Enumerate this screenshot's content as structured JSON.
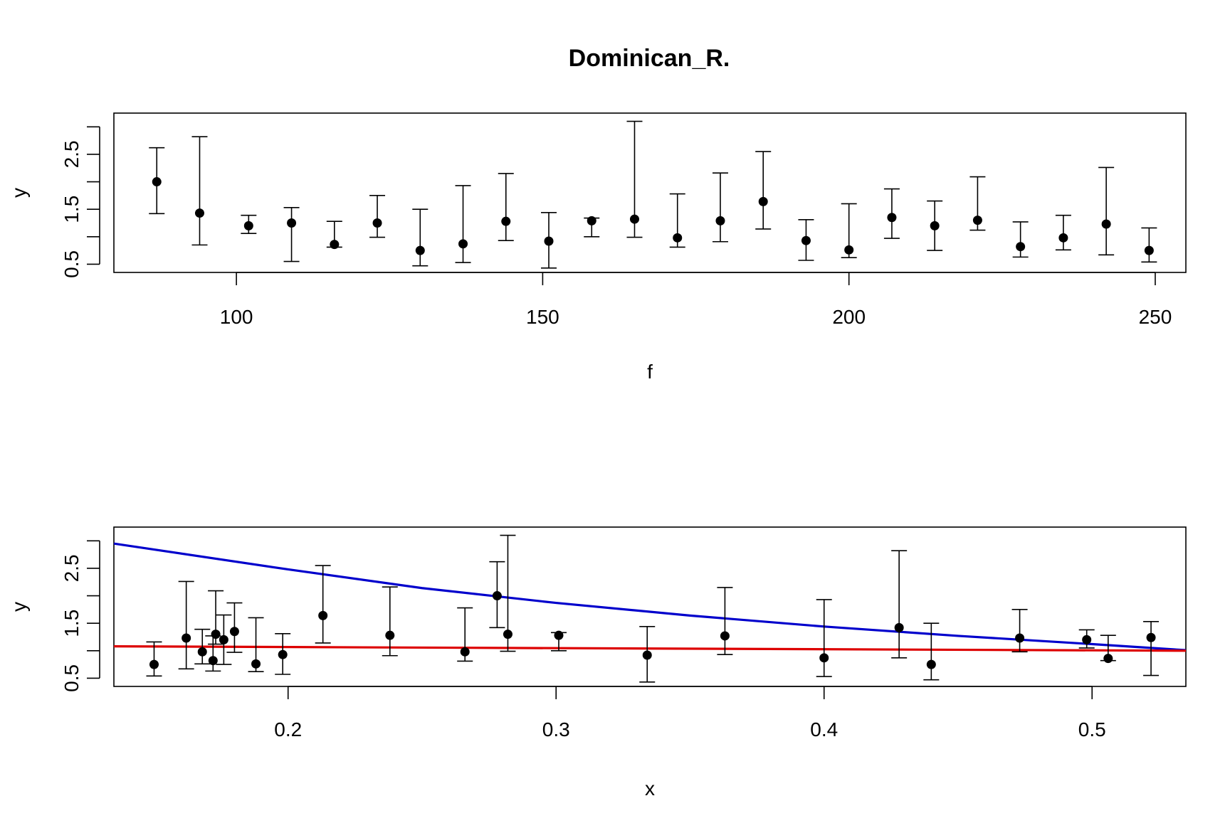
{
  "title": "Dominican_R.",
  "chart_data": [
    {
      "type": "scatter",
      "xlabel": "f",
      "ylabel": "y",
      "xlim": [
        80,
        255
      ],
      "ylim": [
        0.35,
        3.25
      ],
      "x_ticks": [
        100,
        150,
        200,
        250
      ],
      "y_ticks": [
        0.5,
        1.5,
        2.5
      ],
      "y_tick_labels": [
        "0.5",
        "1.5",
        "2.5"
      ],
      "y_minor_ticks": [
        1.0,
        2.0,
        3.0
      ],
      "grid": false,
      "points": [
        {
          "x": 87,
          "y": 2.0,
          "lo": 1.42,
          "hi": 2.62
        },
        {
          "x": 94,
          "y": 1.43,
          "lo": 0.85,
          "hi": 2.82
        },
        {
          "x": 102,
          "y": 1.2,
          "lo": 1.06,
          "hi": 1.39
        },
        {
          "x": 109,
          "y": 1.25,
          "lo": 0.55,
          "hi": 1.53
        },
        {
          "x": 116,
          "y": 0.86,
          "lo": 0.81,
          "hi": 1.28
        },
        {
          "x": 123,
          "y": 1.25,
          "lo": 0.99,
          "hi": 1.75
        },
        {
          "x": 130,
          "y": 0.75,
          "lo": 0.47,
          "hi": 1.5
        },
        {
          "x": 137,
          "y": 0.87,
          "lo": 0.53,
          "hi": 1.93
        },
        {
          "x": 144,
          "y": 1.28,
          "lo": 0.93,
          "hi": 2.15
        },
        {
          "x": 151,
          "y": 0.92,
          "lo": 0.43,
          "hi": 1.44
        },
        {
          "x": 158,
          "y": 1.29,
          "lo": 1.0,
          "hi": 1.34
        },
        {
          "x": 165,
          "y": 1.32,
          "lo": 0.99,
          "hi": 3.1
        },
        {
          "x": 172,
          "y": 0.98,
          "lo": 0.81,
          "hi": 1.78
        },
        {
          "x": 179,
          "y": 1.29,
          "lo": 0.91,
          "hi": 2.16
        },
        {
          "x": 186,
          "y": 1.64,
          "lo": 1.14,
          "hi": 2.55
        },
        {
          "x": 193,
          "y": 0.93,
          "lo": 0.57,
          "hi": 1.31
        },
        {
          "x": 200,
          "y": 0.76,
          "lo": 0.62,
          "hi": 1.6
        },
        {
          "x": 207,
          "y": 1.35,
          "lo": 0.97,
          "hi": 1.87
        },
        {
          "x": 214,
          "y": 1.2,
          "lo": 0.75,
          "hi": 1.65
        },
        {
          "x": 221,
          "y": 1.3,
          "lo": 1.12,
          "hi": 2.09
        },
        {
          "x": 228,
          "y": 0.82,
          "lo": 0.63,
          "hi": 1.27
        },
        {
          "x": 235,
          "y": 0.98,
          "lo": 0.76,
          "hi": 1.39
        },
        {
          "x": 242,
          "y": 1.23,
          "lo": 0.67,
          "hi": 2.26
        },
        {
          "x": 249,
          "y": 0.75,
          "lo": 0.54,
          "hi": 1.16
        }
      ]
    },
    {
      "type": "scatter",
      "xlabel": "x",
      "ylabel": "y",
      "xlim": [
        0.135,
        0.535
      ],
      "ylim": [
        0.35,
        3.25
      ],
      "x_ticks": [
        0.2,
        0.3,
        0.4,
        0.5
      ],
      "x_tick_labels": [
        "0.2",
        "0.3",
        "0.4",
        "0.5"
      ],
      "y_ticks": [
        0.5,
        1.5,
        2.5
      ],
      "y_tick_labels": [
        "0.5",
        "1.5",
        "2.5"
      ],
      "y_minor_ticks": [
        1.0,
        2.0,
        3.0
      ],
      "grid": false,
      "points": [
        {
          "x": 0.15,
          "y": 0.75,
          "lo": 0.54,
          "hi": 1.16
        },
        {
          "x": 0.162,
          "y": 1.23,
          "lo": 0.67,
          "hi": 2.26
        },
        {
          "x": 0.168,
          "y": 0.98,
          "lo": 0.76,
          "hi": 1.39
        },
        {
          "x": 0.172,
          "y": 0.82,
          "lo": 0.63,
          "hi": 1.27
        },
        {
          "x": 0.173,
          "y": 1.3,
          "lo": 1.12,
          "hi": 2.09
        },
        {
          "x": 0.176,
          "y": 1.2,
          "lo": 0.75,
          "hi": 1.65
        },
        {
          "x": 0.18,
          "y": 1.35,
          "lo": 0.97,
          "hi": 1.87
        },
        {
          "x": 0.188,
          "y": 0.76,
          "lo": 0.62,
          "hi": 1.6
        },
        {
          "x": 0.198,
          "y": 0.93,
          "lo": 0.57,
          "hi": 1.31
        },
        {
          "x": 0.213,
          "y": 1.64,
          "lo": 1.14,
          "hi": 2.55
        },
        {
          "x": 0.238,
          "y": 1.28,
          "lo": 0.91,
          "hi": 2.16
        },
        {
          "x": 0.266,
          "y": 0.98,
          "lo": 0.81,
          "hi": 1.78
        },
        {
          "x": 0.278,
          "y": 2.0,
          "lo": 1.42,
          "hi": 2.62
        },
        {
          "x": 0.282,
          "y": 1.3,
          "lo": 0.99,
          "hi": 3.1
        },
        {
          "x": 0.301,
          "y": 1.28,
          "lo": 1.0,
          "hi": 1.33
        },
        {
          "x": 0.334,
          "y": 0.92,
          "lo": 0.43,
          "hi": 1.44
        },
        {
          "x": 0.363,
          "y": 1.27,
          "lo": 0.93,
          "hi": 2.15
        },
        {
          "x": 0.4,
          "y": 0.87,
          "lo": 0.53,
          "hi": 1.93
        },
        {
          "x": 0.428,
          "y": 1.42,
          "lo": 0.87,
          "hi": 2.82
        },
        {
          "x": 0.44,
          "y": 0.75,
          "lo": 0.47,
          "hi": 1.5
        },
        {
          "x": 0.473,
          "y": 1.23,
          "lo": 0.98,
          "hi": 1.75
        },
        {
          "x": 0.498,
          "y": 1.2,
          "lo": 1.05,
          "hi": 1.38
        },
        {
          "x": 0.506,
          "y": 0.86,
          "lo": 0.82,
          "hi": 1.28
        },
        {
          "x": 0.522,
          "y": 1.24,
          "lo": 0.55,
          "hi": 1.53
        }
      ],
      "lines": [
        {
          "color": "#0000cc",
          "x": [
            0.135,
            0.2,
            0.25,
            0.3,
            0.35,
            0.4,
            0.45,
            0.5,
            0.535
          ],
          "y": [
            2.95,
            2.48,
            2.14,
            1.87,
            1.64,
            1.44,
            1.27,
            1.12,
            1.01
          ]
        },
        {
          "color": "#dd0000",
          "x": [
            0.135,
            0.535
          ],
          "y": [
            1.08,
            1.0
          ]
        }
      ]
    }
  ]
}
